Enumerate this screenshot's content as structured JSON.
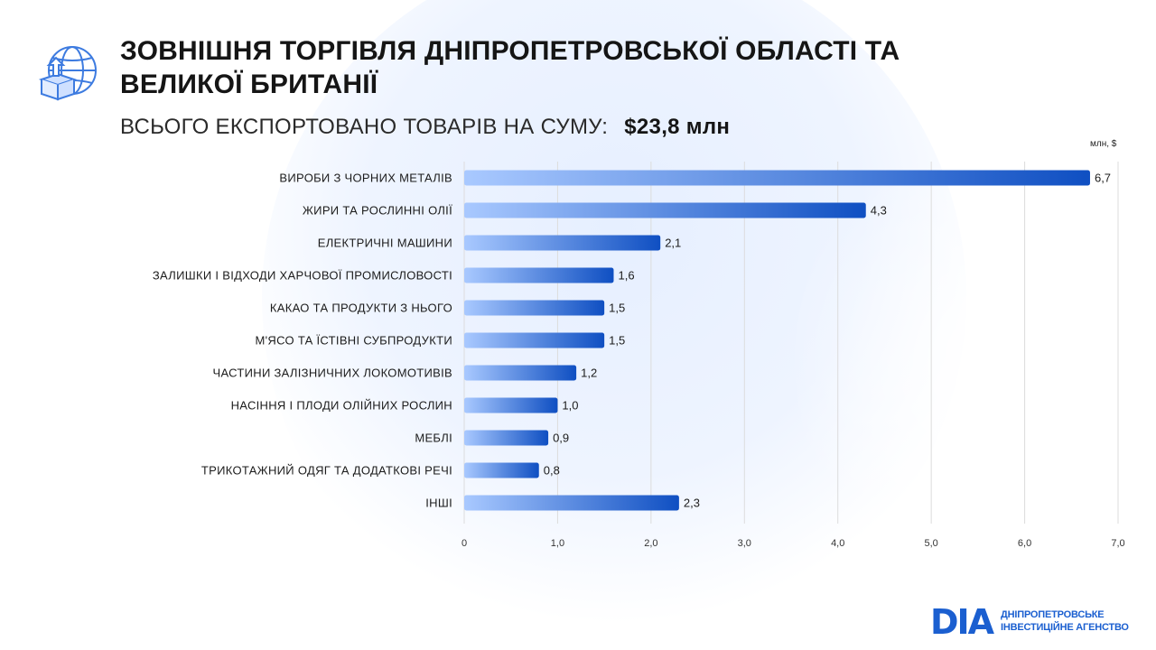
{
  "header": {
    "title_line1": "ЗОВНІШНЯ ТОРГІВЛЯ ДНІПРОПЕТРОВСЬКОЇ ОБЛАСТІ ТА",
    "title_line2": "ВЕЛИКОЇ БРИТАНІЇ",
    "subtitle": "ВСЬОГО ЕКСПОРТОВАНО ТОВАРІВ НА СУМУ:",
    "total": "$23,8 млн"
  },
  "brand": {
    "mark": "DIA",
    "line1": "ДНІПРОПЕТРОВСЬКЕ",
    "line2": "ІНВЕСТИЦІЙНЕ АГЕНСТВО"
  },
  "colors": {
    "bar_start": "#a9c9ff",
    "bar_end": "#0f4fc2",
    "grid": "#dcdcdc"
  },
  "icons": [
    "globe-export-box-icon"
  ],
  "chart_data": {
    "type": "bar",
    "orientation": "horizontal",
    "unit_label": "млн, $",
    "categories": [
      "ВИРОБИ З ЧОРНИХ МЕТАЛІВ",
      "ЖИРИ ТА РОСЛИННІ ОЛІЇ",
      "ЕЛЕКТРИЧНІ МАШИНИ",
      "ЗАЛИШКИ І ВІДХОДИ ХАРЧОВОЇ ПРОМИСЛОВОСТІ",
      "КАКАО ТА ПРОДУКТИ З НЬОГО",
      "М'ЯСО ТА ЇСТІВНІ СУБПРОДУКТИ",
      "ЧАСТИНИ ЗАЛІЗНИЧНИХ ЛОКОМОТИВІВ",
      "НАСІННЯ І ПЛОДИ ОЛІЙНИХ РОСЛИН",
      "МЕБЛІ",
      "ТРИКОТАЖНИЙ ОДЯГ ТА ДОДАТКОВІ РЕЧІ",
      "ІНШІ"
    ],
    "values": [
      6.7,
      4.3,
      2.1,
      1.6,
      1.5,
      1.5,
      1.2,
      1.0,
      0.9,
      0.8,
      2.3
    ],
    "value_labels": [
      "6,7",
      "4,3",
      "2,1",
      "1,6",
      "1,5",
      "1,5",
      "1,2",
      "1,0",
      "0,9",
      "0,8",
      "2,3"
    ],
    "x_ticks": [
      0,
      1,
      2,
      3,
      4,
      5,
      6,
      7
    ],
    "x_tick_labels": [
      "0",
      "1,0",
      "2,0",
      "3,0",
      "4,0",
      "5,0",
      "6,0",
      "7,0"
    ],
    "xlim": [
      0,
      7
    ],
    "grid": "vertical"
  }
}
